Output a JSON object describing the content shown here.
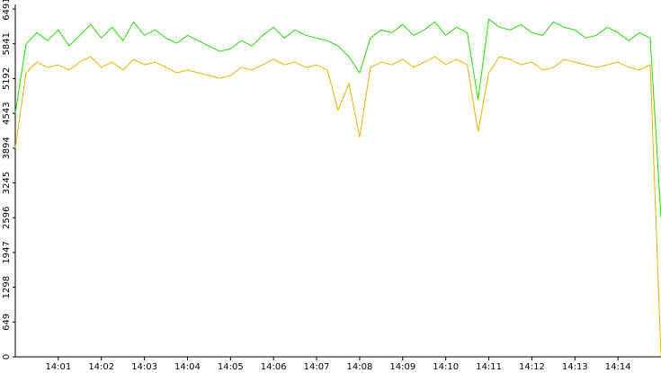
{
  "chart_data": {
    "type": "line",
    "x": [
      0,
      0.25,
      0.5,
      0.75,
      1,
      1.25,
      1.5,
      1.75,
      2,
      2.25,
      2.5,
      2.75,
      3,
      3.25,
      3.5,
      3.75,
      4,
      4.25,
      4.5,
      4.75,
      5,
      5.25,
      5.5,
      5.75,
      6,
      6.25,
      6.5,
      6.75,
      7,
      7.25,
      7.5,
      7.75,
      8,
      8.25,
      8.5,
      8.75,
      9,
      9.25,
      9.5,
      9.75,
      10,
      10.25,
      10.5,
      10.75,
      11,
      11.25,
      11.5,
      11.75,
      12,
      12.25,
      12.5,
      12.75,
      13,
      13.25,
      13.5,
      13.75,
      14,
      14.25,
      14.5,
      14.75,
      15
    ],
    "series": [
      {
        "color": "#22dd00",
        "values": [
          4543,
          5841,
          6050,
          5900,
          6100,
          5800,
          6000,
          6200,
          5950,
          6150,
          5900,
          6250,
          6000,
          6100,
          5950,
          5850,
          6000,
          5900,
          5800,
          5700,
          5750,
          5900,
          5800,
          6000,
          6150,
          5950,
          6100,
          6000,
          5950,
          5900,
          5800,
          5600,
          5300,
          5950,
          6100,
          6050,
          6200,
          6000,
          6100,
          6250,
          6000,
          6150,
          6050,
          4800,
          6300,
          6150,
          6100,
          6200,
          6050,
          6000,
          6250,
          6150,
          6100,
          5950,
          6000,
          6150,
          6050,
          5900,
          6050,
          5950,
          2596
        ]
      },
      {
        "color": "#eeb200",
        "values": [
          3894,
          5300,
          5500,
          5400,
          5450,
          5350,
          5500,
          5600,
          5400,
          5500,
          5350,
          5550,
          5450,
          5500,
          5400,
          5300,
          5350,
          5300,
          5250,
          5200,
          5250,
          5400,
          5350,
          5450,
          5550,
          5450,
          5500,
          5400,
          5450,
          5350,
          4600,
          5100,
          4100,
          5400,
          5500,
          5450,
          5550,
          5400,
          5500,
          5600,
          5450,
          5550,
          5450,
          4200,
          5300,
          5600,
          5550,
          5450,
          5500,
          5350,
          5400,
          5550,
          5500,
          5450,
          5400,
          5450,
          5500,
          5400,
          5350,
          5450,
          0
        ]
      }
    ],
    "xlim": [
      0,
      15
    ],
    "xticks": [
      {
        "value": 1,
        "label": "14:01"
      },
      {
        "value": 2,
        "label": "14:02"
      },
      {
        "value": 3,
        "label": "14:03"
      },
      {
        "value": 4,
        "label": "14:04"
      },
      {
        "value": 5,
        "label": "14:05"
      },
      {
        "value": 6,
        "label": "14:06"
      },
      {
        "value": 7,
        "label": "14:07"
      },
      {
        "value": 8,
        "label": "14:08"
      },
      {
        "value": 9,
        "label": "14:09"
      },
      {
        "value": 10,
        "label": "14:10"
      },
      {
        "value": 11,
        "label": "14:11"
      },
      {
        "value": 12,
        "label": "14:12"
      },
      {
        "value": 13,
        "label": "14:13"
      },
      {
        "value": 14,
        "label": "14:14"
      }
    ],
    "ylim": [
      0,
      6491
    ],
    "yticks": [
      0,
      649,
      1298,
      1947,
      2596,
      3245,
      3894,
      4543,
      5192,
      5841,
      6491
    ]
  }
}
